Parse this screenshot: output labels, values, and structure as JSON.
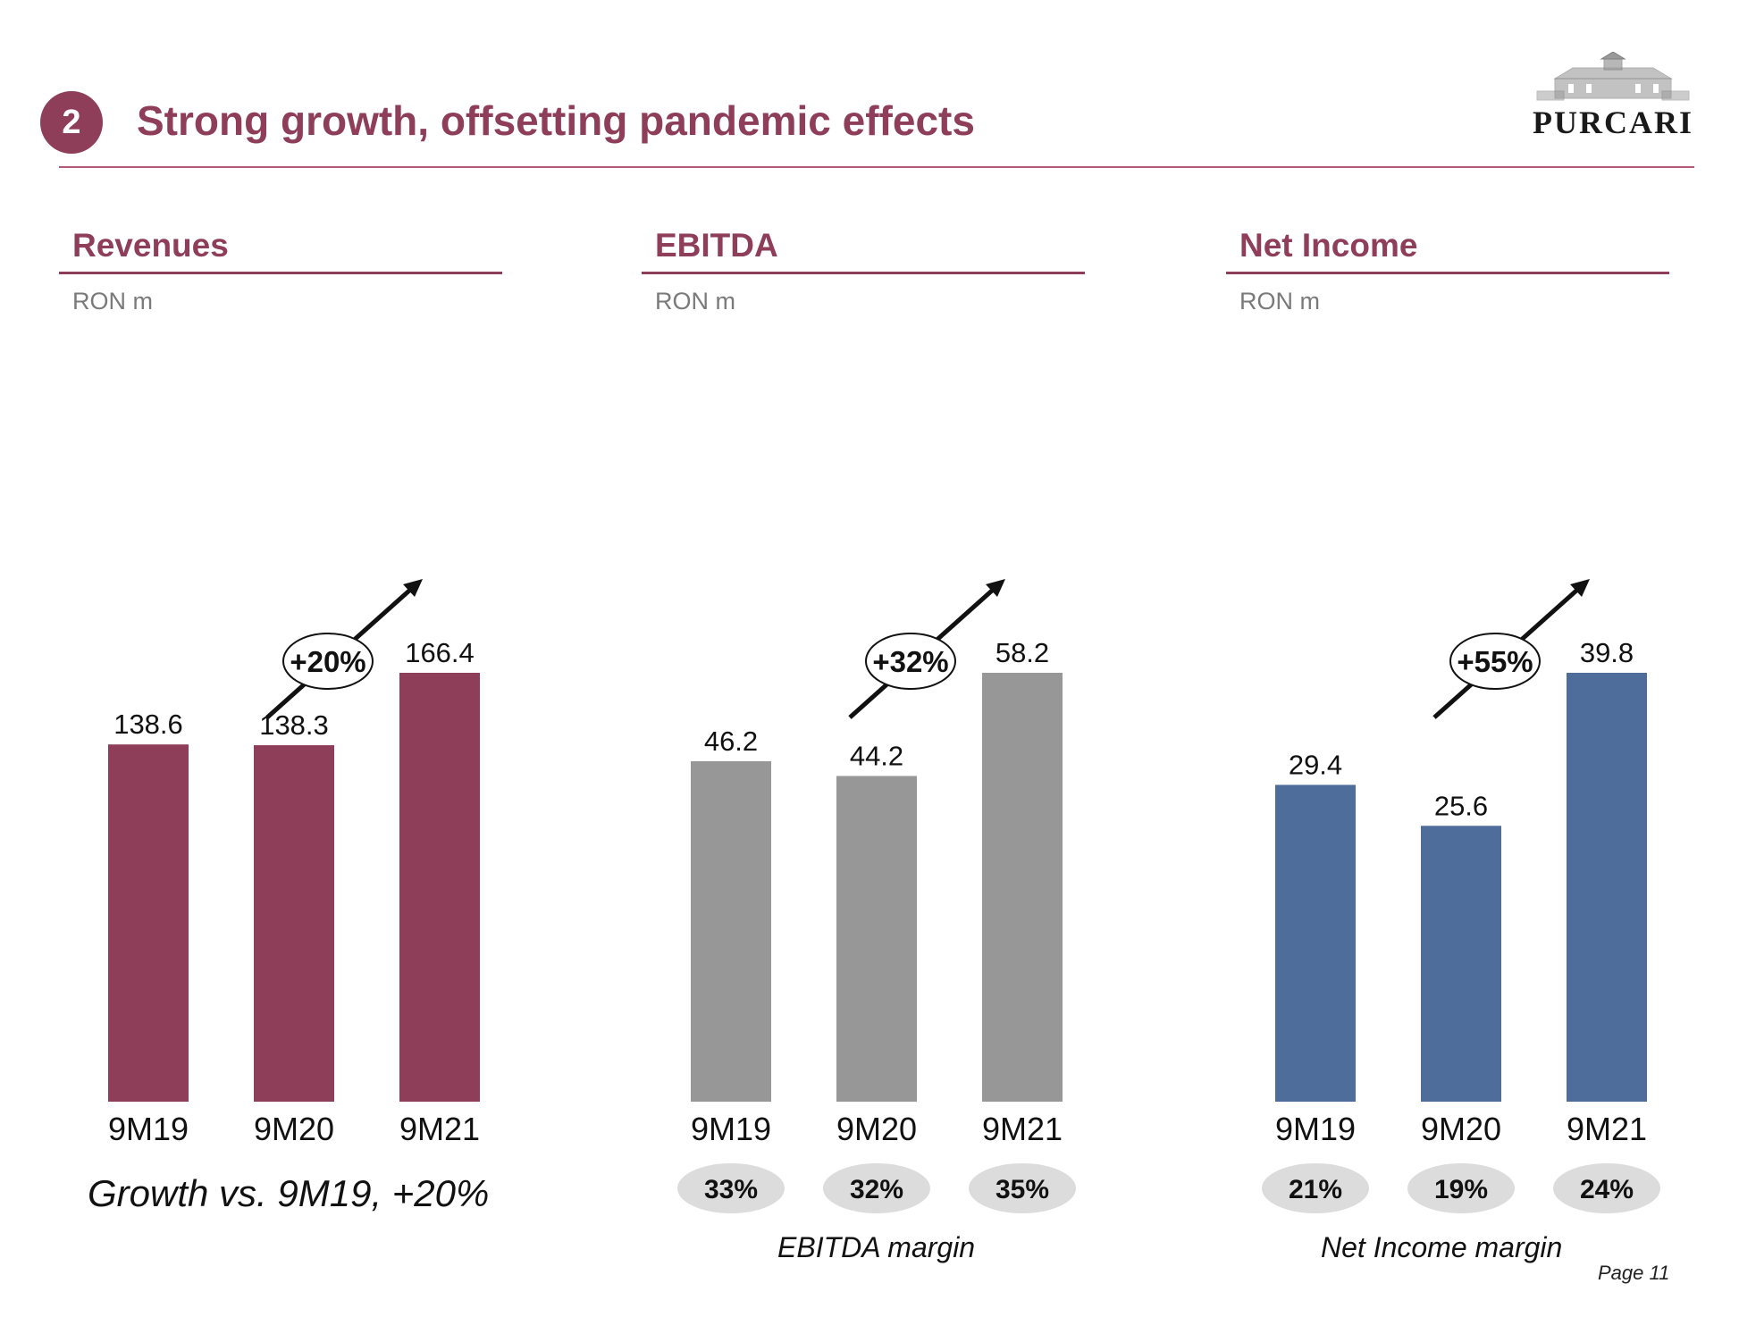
{
  "header": {
    "section_number": "2",
    "title": "Strong growth, offsetting pandemic effects",
    "logo_text": "PURCARI",
    "accent_color": "#8e3e59"
  },
  "footer": {
    "page_label": "Page 11"
  },
  "panels": [
    {
      "title": "Revenues",
      "unit": "RON m",
      "growth_label": "+20%",
      "footnote": "Growth vs. 9M19, +20%",
      "margin_caption": ""
    },
    {
      "title": "EBITDA",
      "unit": "RON m",
      "growth_label": "+32%",
      "footnote": "",
      "margin_caption": "EBITDA margin"
    },
    {
      "title": "Net Income",
      "unit": "RON m",
      "growth_label": "+55%",
      "footnote": "",
      "margin_caption": "Net Income margin"
    }
  ],
  "chart_data": [
    {
      "type": "bar",
      "title": "Revenues",
      "ylabel": "RON m",
      "categories": [
        "9M19",
        "9M20",
        "9M21"
      ],
      "values": [
        138.6,
        138.3,
        166.4
      ],
      "value_labels": [
        "138.6",
        "138.3",
        "166.4"
      ],
      "color": "#8e3e59",
      "growth": "+20%",
      "margins": []
    },
    {
      "type": "bar",
      "title": "EBITDA",
      "ylabel": "RON m",
      "categories": [
        "9M19",
        "9M20",
        "9M21"
      ],
      "values": [
        46.2,
        44.2,
        58.2
      ],
      "value_labels": [
        "46.2",
        "44.2",
        "58.2"
      ],
      "color": "#979797",
      "growth": "+32%",
      "margins": [
        "33%",
        "32%",
        "35%"
      ]
    },
    {
      "type": "bar",
      "title": "Net Income",
      "ylabel": "RON m",
      "categories": [
        "9M19",
        "9M20",
        "9M21"
      ],
      "values": [
        29.4,
        25.6,
        39.8
      ],
      "value_labels": [
        "29.4",
        "25.6",
        "39.8"
      ],
      "color": "#4e6d9a",
      "growth": "+55%",
      "margins": [
        "21%",
        "19%",
        "24%"
      ]
    }
  ]
}
